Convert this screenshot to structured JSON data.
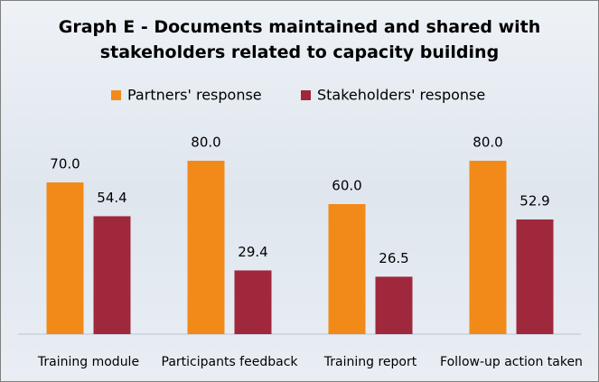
{
  "chart_data": {
    "type": "bar",
    "title": "Graph E - Documents maintained and shared with stakeholders related to capacity building",
    "categories": [
      "Training module",
      "Participants feedback",
      "Training report",
      "Follow-up action taken"
    ],
    "series": [
      {
        "name": "Partners' response",
        "color": "#f28a1a",
        "values": [
          70,
          80,
          60,
          80
        ],
        "value_labels": [
          "70.0",
          "80.0",
          "60.0",
          "80.0"
        ]
      },
      {
        "name": "Stakeholders' response",
        "color": "#a0283c",
        "values": [
          54.4,
          29.4,
          26.5,
          52.9
        ],
        "value_labels": [
          "54.4",
          "29.4",
          "26.5",
          "52.9"
        ]
      }
    ],
    "ylim": [
      0,
      100
    ],
    "legend": "top"
  }
}
